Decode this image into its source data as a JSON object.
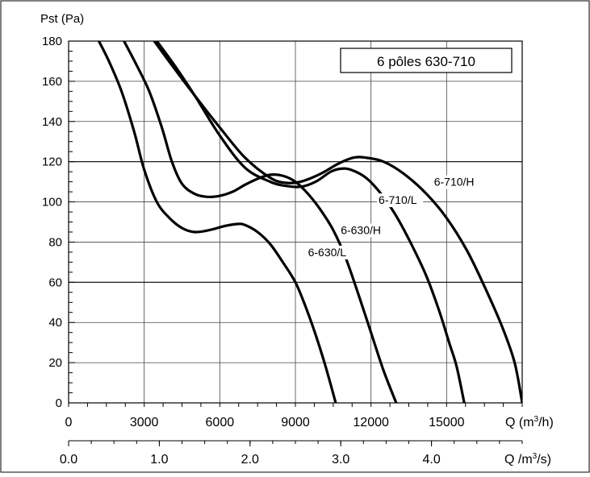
{
  "chart_data": {
    "type": "line",
    "title": "6 pôles 630-710",
    "ylabel": "Pst (Pa)",
    "xlabel": "Q (m³/h)",
    "xlabel2": "Q (m³/s)",
    "xlim": [
      0,
      18000
    ],
    "ylim": [
      0,
      180
    ],
    "x_ticks": [
      0,
      3000,
      6000,
      9000,
      12000,
      15000
    ],
    "x_tick_labels": [
      "0",
      "3000",
      "6000",
      "9000",
      "12000",
      "15000"
    ],
    "y_ticks": [
      0,
      20,
      40,
      60,
      80,
      100,
      120,
      140,
      160,
      180
    ],
    "y_tick_labels": [
      "0",
      "20",
      "40",
      "60",
      "80",
      "100",
      "120",
      "140",
      "160",
      "180"
    ],
    "x2_ticks": [
      0.0,
      1.0,
      2.0,
      3.0,
      4.0
    ],
    "x2_tick_labels": [
      "0.0",
      "1.0",
      "2.0",
      "3.0",
      "4.0"
    ],
    "x2_max": 5.0,
    "grid": true,
    "series": [
      {
        "name": "6-630/L",
        "points": [
          [
            1200,
            180
          ],
          [
            1600,
            170
          ],
          [
            2100,
            155
          ],
          [
            2600,
            135
          ],
          [
            3000,
            116
          ],
          [
            3500,
            100
          ],
          [
            4000,
            92
          ],
          [
            4500,
            87
          ],
          [
            5000,
            85
          ],
          [
            5600,
            86
          ],
          [
            6200,
            88
          ],
          [
            6700,
            89
          ],
          [
            7000,
            88.5
          ],
          [
            7500,
            85
          ],
          [
            8000,
            79
          ],
          [
            8500,
            70
          ],
          [
            9000,
            60
          ],
          [
            9400,
            48
          ],
          [
            9800,
            34
          ],
          [
            10200,
            18
          ],
          [
            10600,
            0
          ]
        ]
      },
      {
        "name": "6-630/H",
        "points": [
          [
            2200,
            180
          ],
          [
            2700,
            168
          ],
          [
            3200,
            155
          ],
          [
            3700,
            137
          ],
          [
            4100,
            120
          ],
          [
            4500,
            109
          ],
          [
            5000,
            104
          ],
          [
            5500,
            102.5
          ],
          [
            6000,
            103
          ],
          [
            6500,
            105
          ],
          [
            7000,
            108.5
          ],
          [
            7500,
            111.5
          ],
          [
            8000,
            113.5
          ],
          [
            8500,
            113
          ],
          [
            9000,
            110
          ],
          [
            9500,
            104
          ],
          [
            10000,
            96
          ],
          [
            10500,
            86
          ],
          [
            11000,
            72
          ],
          [
            11500,
            54
          ],
          [
            12000,
            35
          ],
          [
            12500,
            16
          ],
          [
            13000,
            0
          ]
        ]
      },
      {
        "name": "6-710/L",
        "points": [
          [
            3500,
            180
          ],
          [
            4200,
            168
          ],
          [
            5000,
            153
          ],
          [
            6000,
            133
          ],
          [
            7000,
            117
          ],
          [
            8000,
            110
          ],
          [
            8600,
            108
          ],
          [
            9200,
            107.5
          ],
          [
            9800,
            110
          ],
          [
            10400,
            115
          ],
          [
            10800,
            116.5
          ],
          [
            11200,
            116
          ],
          [
            11800,
            112
          ],
          [
            12400,
            104
          ],
          [
            13000,
            93
          ],
          [
            13600,
            79
          ],
          [
            14200,
            63
          ],
          [
            14700,
            46
          ],
          [
            15100,
            30
          ],
          [
            15400,
            18
          ],
          [
            15700,
            0
          ]
        ]
      },
      {
        "name": "6-710/H",
        "points": [
          [
            3400,
            180
          ],
          [
            4100,
            168
          ],
          [
            5000,
            153
          ],
          [
            6000,
            137
          ],
          [
            7000,
            122
          ],
          [
            8000,
            112
          ],
          [
            8600,
            109.5
          ],
          [
            9200,
            110
          ],
          [
            10000,
            114
          ],
          [
            10700,
            119
          ],
          [
            11300,
            122
          ],
          [
            11800,
            122
          ],
          [
            12500,
            120
          ],
          [
            13300,
            114
          ],
          [
            14200,
            104
          ],
          [
            15000,
            92
          ],
          [
            15800,
            76
          ],
          [
            16500,
            58
          ],
          [
            17200,
            38
          ],
          [
            17700,
            20
          ],
          [
            18000,
            0
          ]
        ]
      }
    ],
    "annotations": [
      {
        "text": "6-630/L",
        "x": 9500,
        "y": 73
      },
      {
        "text": "6-630/H",
        "x": 10800,
        "y": 84
      },
      {
        "text": "6-710/L",
        "x": 12300,
        "y": 99
      },
      {
        "text": "6-710/H",
        "x": 14500,
        "y": 108
      }
    ]
  }
}
